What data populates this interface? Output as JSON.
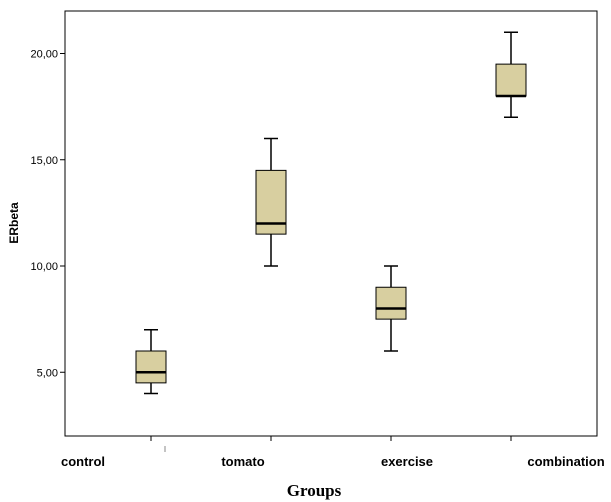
{
  "chart_data": {
    "type": "box",
    "xlabel": "Groups",
    "ylabel": "ERbeta",
    "ylim": [
      2.0,
      22.0
    ],
    "yticks": [
      5,
      10,
      15,
      20
    ],
    "ytick_labels": [
      "5,00",
      "10,00",
      "15,00",
      "20,00"
    ],
    "categories": [
      "control",
      "tomato",
      "exercise",
      "combination"
    ],
    "boxes": [
      {
        "category": "control",
        "min": 4.0,
        "q1": 4.5,
        "median": 5.0,
        "q3": 6.0,
        "max": 7.0
      },
      {
        "category": "tomato",
        "min": 10.0,
        "q1": 11.5,
        "median": 12.0,
        "q3": 14.5,
        "max": 16.0
      },
      {
        "category": "exercise",
        "min": 6.0,
        "q1": 7.5,
        "median": 8.0,
        "q3": 9.0,
        "max": 10.0
      },
      {
        "category": "combination",
        "min": 17.0,
        "q1": 18.0,
        "median": 18.0,
        "q3": 19.5,
        "max": 21.0
      }
    ],
    "grid": false,
    "colors": {
      "box_fill": "#d8cfa0",
      "stroke": "#000000",
      "plot_bg": "#ffffff"
    }
  }
}
